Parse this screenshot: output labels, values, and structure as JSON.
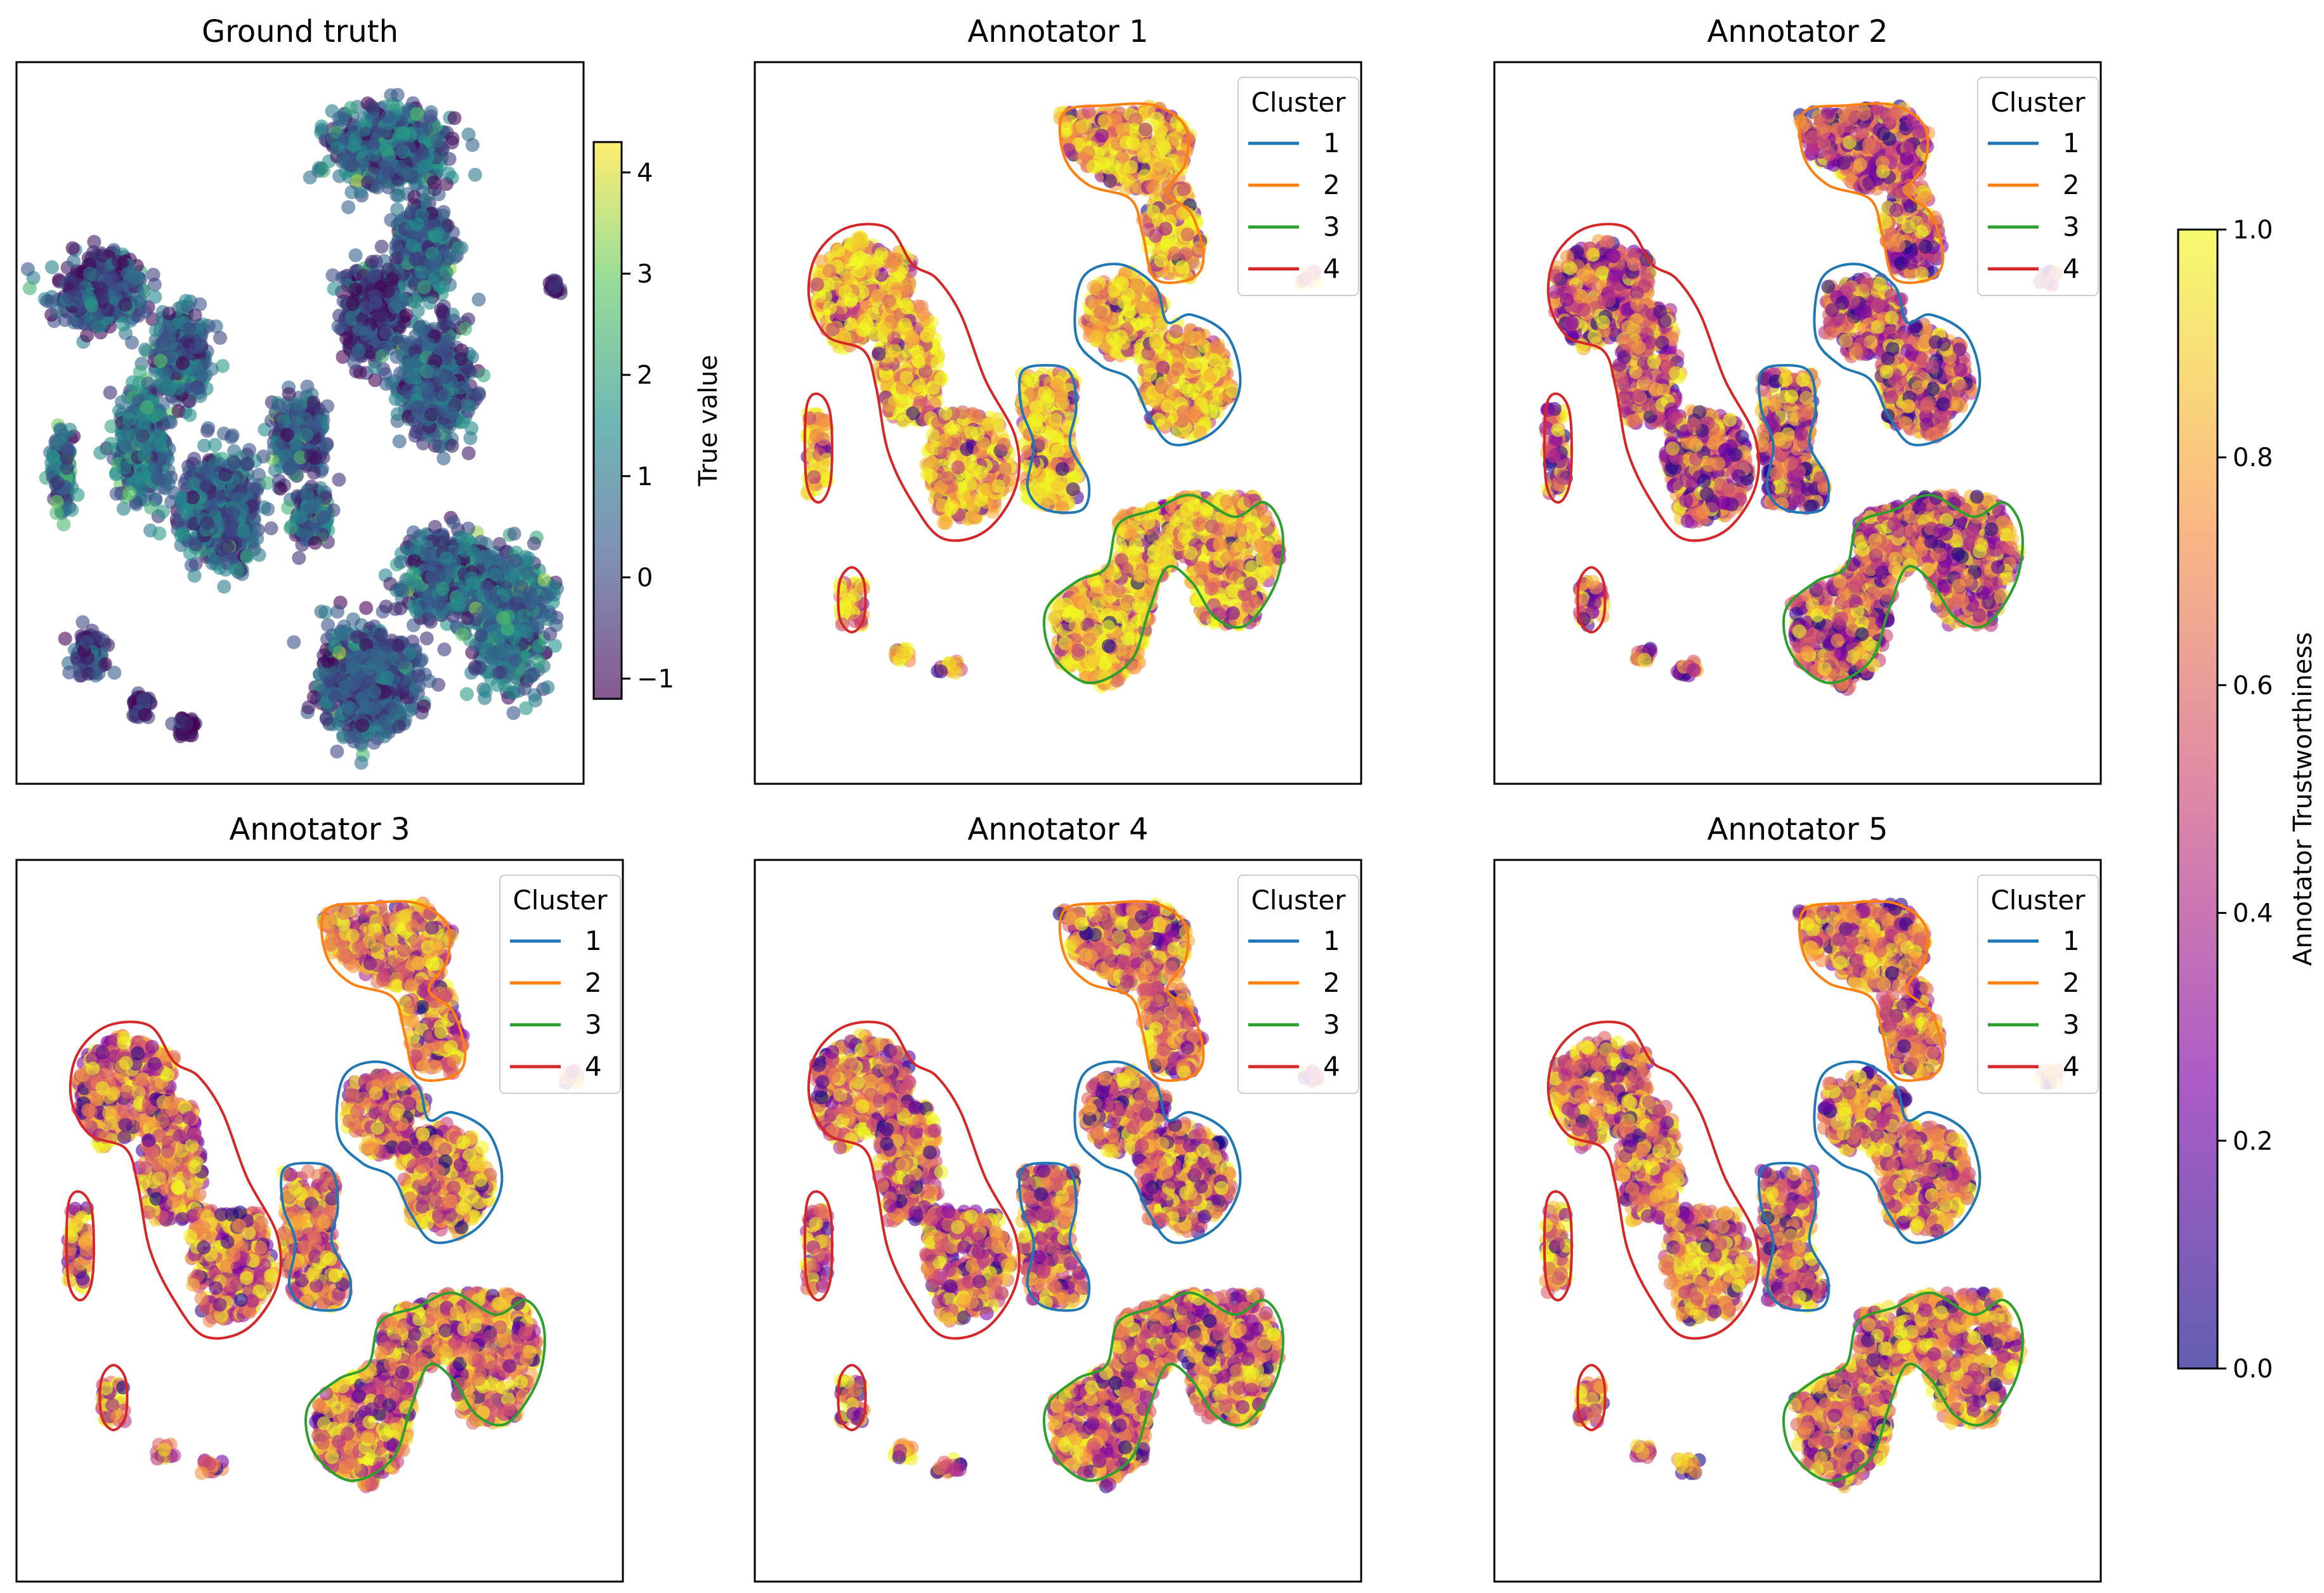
{
  "figure": {
    "panels": [
      {
        "id": "ground-truth",
        "title": "Ground truth"
      },
      {
        "id": "annotator-1",
        "title": "Annotator 1"
      },
      {
        "id": "annotator-2",
        "title": "Annotator 2"
      },
      {
        "id": "annotator-3",
        "title": "Annotator 3"
      },
      {
        "id": "annotator-4",
        "title": "Annotator 4"
      },
      {
        "id": "annotator-5",
        "title": "Annotator 5"
      }
    ],
    "legend": {
      "title": "Cluster",
      "entries": [
        {
          "label": "1",
          "color": "#1f77b4"
        },
        {
          "label": "2",
          "color": "#ff7f0e"
        },
        {
          "label": "3",
          "color": "#2ca02c"
        },
        {
          "label": "4",
          "color": "#d62728"
        }
      ]
    },
    "colorbars": [
      {
        "id": "true-value",
        "label": "True value",
        "colormap": "viridis",
        "range": [
          -1.2,
          4.3
        ],
        "ticks": [
          -1,
          0,
          1,
          2,
          3,
          4
        ],
        "tick_labels": [
          "−1",
          "0",
          "1",
          "2",
          "3",
          "4"
        ]
      },
      {
        "id": "trustworthiness",
        "label": "Annotator Trustworthiness",
        "colormap": "plasma",
        "range": [
          0.0,
          1.0
        ],
        "ticks": [
          0.0,
          0.2,
          0.4,
          0.6,
          0.8,
          1.0
        ],
        "tick_labels": [
          "0.0",
          "0.2",
          "0.4",
          "0.6",
          "0.8",
          "1.0"
        ]
      }
    ],
    "colors": {
      "viridis": [
        "#440154",
        "#3b528b",
        "#21918c",
        "#5ec962",
        "#fde725"
      ],
      "plasma": [
        "#0d0887",
        "#7e03a8",
        "#cc4778",
        "#f89540",
        "#f0f921"
      ],
      "point_alpha": 0.6
    }
  },
  "chart_data": [
    {
      "type": "scatter",
      "title": "Ground truth",
      "color_by": "True value",
      "axes_visible": false,
      "clusters": [
        {
          "cx": 0.66,
          "cy": 0.12,
          "rx": 0.11,
          "ry": 0.06,
          "mean": 0.6
        },
        {
          "cx": 0.72,
          "cy": 0.26,
          "rx": 0.05,
          "ry": 0.07,
          "mean": 0.5
        },
        {
          "cx": 0.63,
          "cy": 0.35,
          "rx": 0.06,
          "ry": 0.07,
          "mean": -0.2
        },
        {
          "cx": 0.74,
          "cy": 0.44,
          "rx": 0.07,
          "ry": 0.08,
          "mean": 0.3
        },
        {
          "cx": 0.15,
          "cy": 0.32,
          "rx": 0.08,
          "ry": 0.05,
          "mean": 0.0
        },
        {
          "cx": 0.29,
          "cy": 0.41,
          "rx": 0.05,
          "ry": 0.07,
          "mean": 0.6
        },
        {
          "cx": 0.22,
          "cy": 0.53,
          "rx": 0.05,
          "ry": 0.08,
          "mean": 0.9
        },
        {
          "cx": 0.36,
          "cy": 0.62,
          "rx": 0.07,
          "ry": 0.08,
          "mean": 0.4
        },
        {
          "cx": 0.5,
          "cy": 0.52,
          "rx": 0.05,
          "ry": 0.06,
          "mean": 0.3
        },
        {
          "cx": 0.52,
          "cy": 0.63,
          "rx": 0.04,
          "ry": 0.04,
          "mean": 0.4
        },
        {
          "cx": 0.08,
          "cy": 0.57,
          "rx": 0.02,
          "ry": 0.06,
          "mean": 0.9
        },
        {
          "cx": 0.13,
          "cy": 0.82,
          "rx": 0.03,
          "ry": 0.03,
          "mean": 0.0
        },
        {
          "cx": 0.22,
          "cy": 0.89,
          "rx": 0.02,
          "ry": 0.015,
          "mean": -0.4
        },
        {
          "cx": 0.3,
          "cy": 0.92,
          "rx": 0.02,
          "ry": 0.015,
          "mean": -0.4
        },
        {
          "cx": 0.62,
          "cy": 0.86,
          "rx": 0.09,
          "ry": 0.08,
          "mean": 0.2
        },
        {
          "cx": 0.76,
          "cy": 0.71,
          "rx": 0.08,
          "ry": 0.06,
          "mean": 0.5
        },
        {
          "cx": 0.87,
          "cy": 0.78,
          "rx": 0.07,
          "ry": 0.09,
          "mean": 0.8
        },
        {
          "cx": 0.95,
          "cy": 0.31,
          "rx": 0.01,
          "ry": 0.01,
          "mean": -0.8
        }
      ]
    },
    {
      "type": "scatter",
      "title": "Annotator 1",
      "color_by": "Annotator Trustworthiness",
      "axes_visible": false,
      "mean_trust": 0.85,
      "legend_title": "Cluster",
      "cluster_outlines": [
        "1",
        "2",
        "3",
        "4"
      ]
    },
    {
      "type": "scatter",
      "title": "Annotator 2",
      "color_by": "Annotator Trustworthiness",
      "axes_visible": false,
      "mean_trust": 0.6,
      "legend_title": "Cluster",
      "cluster_outlines": [
        "1",
        "2",
        "3",
        "4"
      ]
    },
    {
      "type": "scatter",
      "title": "Annotator 3",
      "color_by": "Annotator Trustworthiness",
      "axes_visible": false,
      "mean_trust": 0.7,
      "legend_title": "Cluster",
      "cluster_outlines": [
        "1",
        "2",
        "3",
        "4"
      ]
    },
    {
      "type": "scatter",
      "title": "Annotator 4",
      "color_by": "Annotator Trustworthiness",
      "axes_visible": false,
      "mean_trust": 0.65,
      "legend_title": "Cluster",
      "cluster_outlines": [
        "1",
        "2",
        "3",
        "4"
      ]
    },
    {
      "type": "scatter",
      "title": "Annotator 5",
      "color_by": "Annotator Trustworthiness",
      "axes_visible": false,
      "mean_trust": 0.7,
      "legend_title": "Cluster",
      "cluster_outlines": [
        "1",
        "2",
        "3",
        "4"
      ]
    }
  ]
}
